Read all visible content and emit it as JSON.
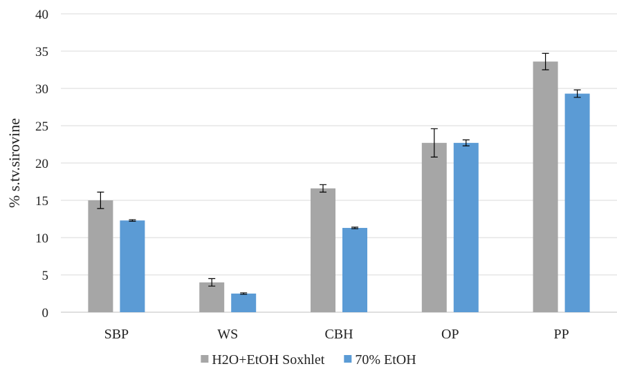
{
  "chart_data": {
    "type": "bar",
    "categories": [
      "SBP",
      "WS",
      "CBH",
      "OP",
      "PP"
    ],
    "series": [
      {
        "name": "H2O+EtOH Soxhlet",
        "color": "#a6a6a6",
        "values": [
          15.0,
          4.0,
          16.6,
          22.7,
          33.6
        ],
        "errors": [
          1.1,
          0.5,
          0.5,
          1.9,
          1.1
        ]
      },
      {
        "name": "70% EtOH",
        "color": "#5b9bd5",
        "values": [
          12.3,
          2.5,
          11.3,
          22.7,
          29.3
        ],
        "errors": [
          0.1,
          0.1,
          0.1,
          0.4,
          0.5
        ]
      }
    ],
    "title": "",
    "xlabel": "",
    "ylabel": "% s.tv.sirovine",
    "ylim": [
      0,
      40
    ],
    "yticks": [
      0,
      5,
      10,
      15,
      20,
      25,
      30,
      35,
      40
    ],
    "grid": true,
    "legend_position": "bottom"
  }
}
